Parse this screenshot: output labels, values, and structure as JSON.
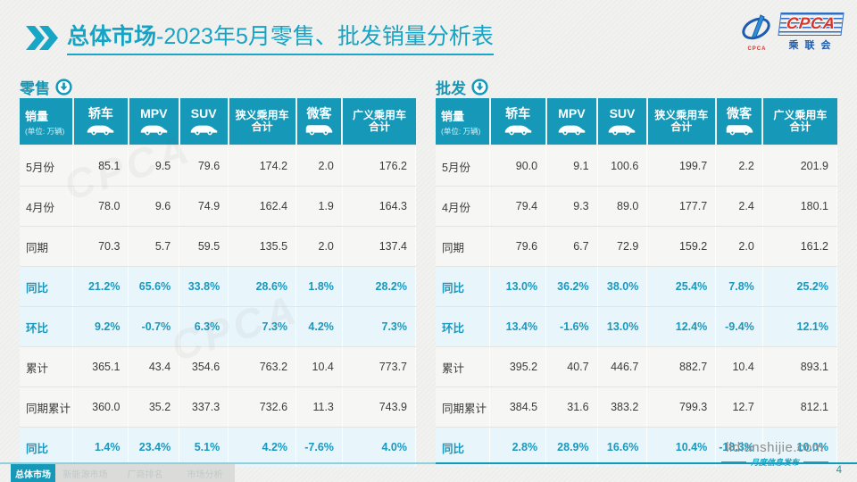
{
  "page": {
    "title_bold": "总体市场",
    "title_rest": "-2023年5月零售、批发销量分析表",
    "page_number": "4",
    "watermark_logo": "CPCA"
  },
  "logo": {
    "en": "CPCA",
    "cn": "乘联会",
    "small_text": "CPCA"
  },
  "colors": {
    "accent_teal": "#1699b8",
    "title_teal": "#17a3c3",
    "highlight_row_bg": "#e8f5fa",
    "highlight_text": "#1a98bd",
    "logo_blue": "#1b5cb0",
    "logo_red": "#d4352b"
  },
  "table_header": {
    "label": "销量",
    "unit": "(单位: 万辆)"
  },
  "columns": [
    {
      "label": "轿车",
      "icon": "car"
    },
    {
      "label": "MPV",
      "icon": "car"
    },
    {
      "label": "SUV",
      "icon": "car"
    },
    {
      "label": "狭义乘用车",
      "sub": "合计"
    },
    {
      "label": "微客",
      "icon": "van"
    },
    {
      "label": "广义乘用车",
      "sub": "合计"
    }
  ],
  "tables": [
    {
      "section": "零售",
      "rows": [
        {
          "label": "5月份",
          "highlight": false,
          "values": [
            "85.1",
            "9.5",
            "79.6",
            "174.2",
            "2.0",
            "176.2"
          ]
        },
        {
          "label": "4月份",
          "highlight": false,
          "values": [
            "78.0",
            "9.6",
            "74.9",
            "162.4",
            "1.9",
            "164.3"
          ]
        },
        {
          "label": "同期",
          "highlight": false,
          "values": [
            "70.3",
            "5.7",
            "59.5",
            "135.5",
            "2.0",
            "137.4"
          ]
        },
        {
          "label": "同比",
          "highlight": true,
          "values": [
            "21.2%",
            "65.6%",
            "33.8%",
            "28.6%",
            "1.8%",
            "28.2%"
          ]
        },
        {
          "label": "环比",
          "highlight": true,
          "values": [
            "9.2%",
            "-0.7%",
            "6.3%",
            "7.3%",
            "4.2%",
            "7.3%"
          ]
        },
        {
          "label": "累计",
          "highlight": false,
          "values": [
            "365.1",
            "43.4",
            "354.6",
            "763.2",
            "10.4",
            "773.7"
          ]
        },
        {
          "label": "同期累计",
          "highlight": false,
          "values": [
            "360.0",
            "35.2",
            "337.3",
            "732.6",
            "11.3",
            "743.9"
          ]
        },
        {
          "label": "同比",
          "highlight": true,
          "values": [
            "1.4%",
            "23.4%",
            "5.1%",
            "4.2%",
            "-7.6%",
            "4.0%"
          ]
        }
      ]
    },
    {
      "section": "批发",
      "rows": [
        {
          "label": "5月份",
          "highlight": false,
          "values": [
            "90.0",
            "9.1",
            "100.6",
            "199.7",
            "2.2",
            "201.9"
          ]
        },
        {
          "label": "4月份",
          "highlight": false,
          "values": [
            "79.4",
            "9.3",
            "89.0",
            "177.7",
            "2.4",
            "180.1"
          ]
        },
        {
          "label": "同期",
          "highlight": false,
          "values": [
            "79.6",
            "6.7",
            "72.9",
            "159.2",
            "2.0",
            "161.2"
          ]
        },
        {
          "label": "同比",
          "highlight": true,
          "values": [
            "13.0%",
            "36.2%",
            "38.0%",
            "25.4%",
            "7.8%",
            "25.2%"
          ]
        },
        {
          "label": "环比",
          "highlight": true,
          "values": [
            "13.4%",
            "-1.6%",
            "13.0%",
            "12.4%",
            "-9.4%",
            "12.1%"
          ]
        },
        {
          "label": "累计",
          "highlight": false,
          "values": [
            "395.2",
            "40.7",
            "446.7",
            "882.7",
            "10.4",
            "893.1"
          ]
        },
        {
          "label": "同期累计",
          "highlight": false,
          "values": [
            "384.5",
            "31.6",
            "383.2",
            "799.3",
            "12.7",
            "812.1"
          ]
        },
        {
          "label": "同比",
          "highlight": true,
          "values": [
            "2.8%",
            "28.9%",
            "16.6%",
            "10.4%",
            "-18.3%",
            "10.0%"
          ]
        }
      ]
    }
  ],
  "footer": {
    "tabs": [
      {
        "label": "总体市场",
        "active": true
      },
      {
        "label": "新能源市场",
        "active": false
      },
      {
        "label": "厂商排名",
        "active": false
      },
      {
        "label": "市场分析",
        "active": false
      }
    ],
    "site": "lidianshijie.com",
    "caption": "月度信息发布"
  }
}
